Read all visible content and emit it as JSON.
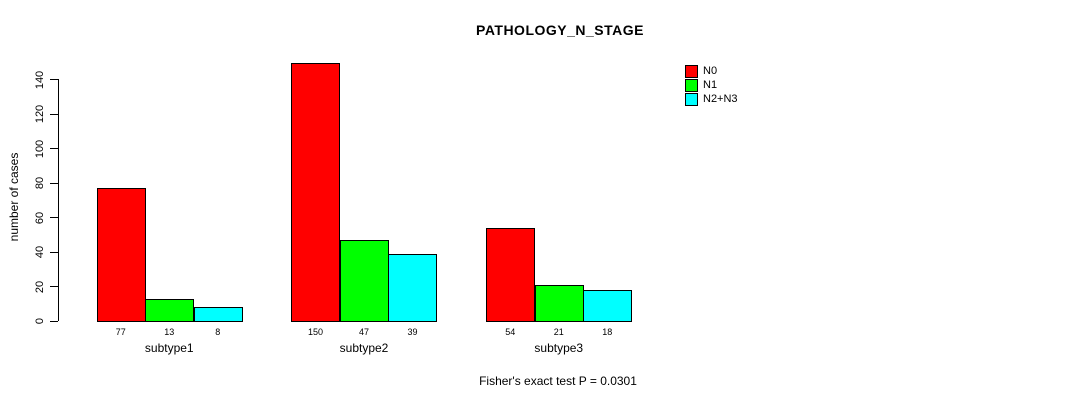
{
  "title": "PATHOLOGY_N_STAGE",
  "footer": "Fisher's exact test P = 0.0301",
  "chart_data": {
    "type": "bar",
    "title": "PATHOLOGY_N_STAGE",
    "xlabel": "",
    "ylabel": "number of cases",
    "categories": [
      "subtype1",
      "subtype2",
      "subtype3"
    ],
    "series": [
      {
        "name": "N0",
        "color": "#ff0000",
        "values": [
          77,
          150,
          54
        ]
      },
      {
        "name": "N1",
        "color": "#00ff00",
        "values": [
          13,
          47,
          21
        ]
      },
      {
        "name": "N2+N3",
        "color": "#00ffff",
        "values": [
          8,
          39,
          18
        ]
      }
    ],
    "bar_value_labels": [
      [
        "77",
        "13",
        "8"
      ],
      [
        "150",
        "47",
        "39"
      ],
      [
        "54",
        "21",
        "18"
      ]
    ],
    "yticks": [
      0,
      20,
      40,
      60,
      80,
      100,
      120,
      140
    ],
    "ylim": [
      0,
      150
    ],
    "grid": false,
    "legend_position": "top-right",
    "annotation": "Fisher's exact test P = 0.0301"
  }
}
